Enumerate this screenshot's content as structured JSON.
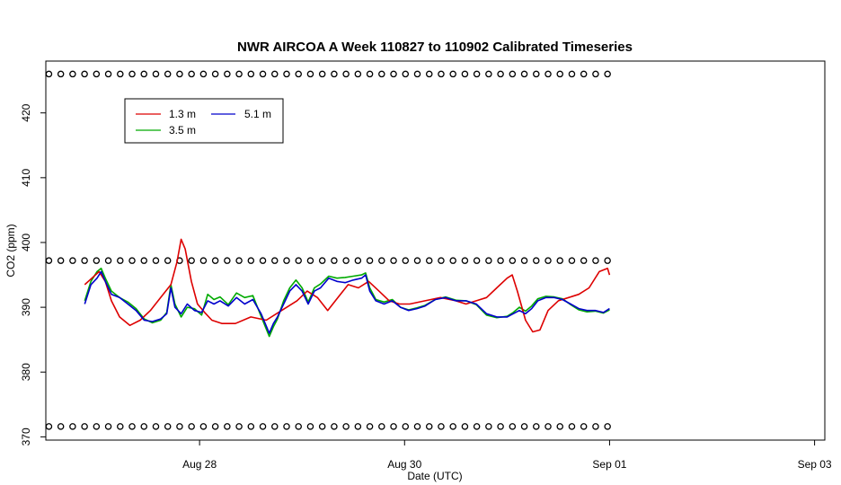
{
  "chart_data": {
    "type": "line",
    "title": "NWR AIRCOA A  Week 110827 to 110902  Calibrated Timeseries",
    "xlabel": "Date (UTC)",
    "ylabel": "CO2 (ppm)",
    "x_units": "days since Aug 27 00:00 UTC",
    "xlim": [
      -0.5,
      7.1
    ],
    "ylim": [
      369.5,
      428
    ],
    "x_ticks": [
      {
        "value": 1,
        "label": "Aug 28"
      },
      {
        "value": 3,
        "label": "Aug 30"
      },
      {
        "value": 5,
        "label": "Sep 01"
      },
      {
        "value": 7,
        "label": "Sep 03"
      }
    ],
    "y_ticks": [
      370,
      380,
      390,
      400,
      410,
      420
    ],
    "legend": {
      "position": "top-left",
      "entries": [
        {
          "label": "1.3 m",
          "color": "#dd0000"
        },
        {
          "label": "5.1 m",
          "color": "#0000cc"
        },
        {
          "label": "3.5 m",
          "color": "#00aa00"
        }
      ]
    },
    "series": [
      {
        "name": "1.3 m",
        "color": "#dd0000",
        "x": [
          -0.12,
          -0.05,
          0.02,
          0.08,
          0.14,
          0.22,
          0.32,
          0.42,
          0.52,
          0.62,
          0.72,
          0.78,
          0.82,
          0.86,
          0.92,
          0.98,
          1.05,
          1.12,
          1.22,
          1.35,
          1.5,
          1.65,
          1.8,
          1.95,
          2.05,
          2.15,
          2.25,
          2.35,
          2.45,
          2.55,
          2.65,
          2.75,
          2.85,
          2.95,
          3.05,
          3.2,
          3.35,
          3.5,
          3.6,
          3.7,
          3.8,
          3.9,
          4.0,
          4.05,
          4.1,
          4.18,
          4.25,
          4.32,
          4.4,
          4.5,
          4.6,
          4.7,
          4.8,
          4.9,
          4.98,
          5.0
        ],
        "y": [
          393.5,
          394.5,
          395.5,
          394,
          391,
          388.5,
          387.2,
          388,
          389.5,
          391.5,
          393.5,
          397,
          400.5,
          399,
          394,
          390.5,
          389.2,
          388,
          387.5,
          387.5,
          388.5,
          388,
          389.5,
          391,
          392.5,
          391.5,
          389.5,
          391.5,
          393.5,
          393,
          394,
          392.5,
          391,
          390.5,
          390.5,
          391,
          391.5,
          391,
          390.5,
          391,
          391.5,
          393,
          394.5,
          395,
          392.5,
          388,
          386.2,
          386.5,
          389.5,
          391,
          391.5,
          392,
          393,
          395.5,
          396,
          395
        ]
      },
      {
        "name": "5.1 m",
        "color": "#0000cc",
        "x": [
          -0.12,
          -0.06,
          0.0,
          0.04,
          0.08,
          0.14,
          0.22,
          0.3,
          0.38,
          0.46,
          0.54,
          0.62,
          0.68,
          0.72,
          0.76,
          0.82,
          0.88,
          0.95,
          1.02,
          1.08,
          1.14,
          1.2,
          1.28,
          1.36,
          1.44,
          1.52,
          1.6,
          1.68,
          1.72,
          1.76,
          1.82,
          1.88,
          1.94,
          2.0,
          2.06,
          2.12,
          2.18,
          2.26,
          2.34,
          2.42,
          2.5,
          2.58,
          2.62,
          2.66,
          2.72,
          2.8,
          2.88,
          2.96,
          3.04,
          3.12,
          3.2,
          3.3,
          3.4,
          3.5,
          3.6,
          3.7,
          3.8,
          3.9,
          4.0,
          4.06,
          4.12,
          4.18,
          4.24,
          4.3,
          4.38,
          4.46,
          4.54,
          4.62,
          4.7,
          4.78,
          4.86,
          4.94,
          5.0
        ],
        "y": [
          390.5,
          393.5,
          394.5,
          395.5,
          394,
          392,
          391.5,
          390.5,
          389.5,
          388,
          387.8,
          388.2,
          389,
          393,
          390,
          389,
          390.5,
          389.5,
          389.2,
          391,
          390.5,
          391,
          390.2,
          391.5,
          390.5,
          391.2,
          389,
          386,
          387.5,
          388.5,
          390.5,
          392.5,
          393.5,
          392.5,
          390.5,
          392.5,
          393,
          394.5,
          394,
          393.8,
          394.2,
          394.5,
          395,
          392.5,
          391,
          390.5,
          391,
          390,
          389.5,
          389.8,
          390.2,
          391.2,
          391.5,
          391,
          391,
          390.5,
          389,
          388.5,
          388.5,
          389,
          389.5,
          389,
          389.8,
          391,
          391.5,
          391.5,
          391.2,
          390.5,
          389.8,
          389.5,
          389.5,
          389.2,
          389.8
        ]
      },
      {
        "name": "3.5 m",
        "color": "#00aa00",
        "x": [
          -0.12,
          -0.06,
          0.0,
          0.04,
          0.08,
          0.14,
          0.22,
          0.3,
          0.38,
          0.46,
          0.54,
          0.62,
          0.68,
          0.72,
          0.76,
          0.82,
          0.88,
          0.95,
          1.02,
          1.08,
          1.14,
          1.2,
          1.28,
          1.36,
          1.44,
          1.52,
          1.6,
          1.68,
          1.72,
          1.76,
          1.82,
          1.88,
          1.94,
          2.0,
          2.06,
          2.12,
          2.18,
          2.26,
          2.34,
          2.42,
          2.5,
          2.58,
          2.62,
          2.66,
          2.72,
          2.8,
          2.88,
          2.96,
          3.04,
          3.12,
          3.2,
          3.3,
          3.4,
          3.5,
          3.6,
          3.7,
          3.8,
          3.9,
          4.0,
          4.06,
          4.12,
          4.18,
          4.24,
          4.3,
          4.38,
          4.46,
          4.54,
          4.62,
          4.7,
          4.78,
          4.86,
          4.94,
          5.0
        ],
        "y": [
          391,
          394,
          395.5,
          396,
          394.5,
          392.5,
          391.5,
          390.8,
          389.8,
          388.2,
          387.6,
          388,
          389.2,
          393.5,
          390.5,
          388.5,
          390,
          389.8,
          388.8,
          392,
          391.2,
          391.6,
          390.4,
          392.2,
          391.5,
          391.8,
          388.6,
          385.5,
          387,
          388.2,
          391,
          393,
          394.2,
          393,
          390.8,
          393,
          393.6,
          394.8,
          394.5,
          394.6,
          394.8,
          395,
          395.3,
          393,
          391.2,
          390.8,
          391.2,
          390,
          389.6,
          389.9,
          390.3,
          391.2,
          391.6,
          391.1,
          391,
          390.4,
          388.8,
          388.4,
          388.6,
          389.2,
          390,
          389.4,
          390.2,
          391.3,
          391.7,
          391.6,
          391.3,
          390.4,
          389.6,
          389.3,
          389.4,
          389.1,
          389.6
        ]
      }
    ],
    "reference_markers": {
      "marker": "circle",
      "x_start": -0.47,
      "x_end": 4.98,
      "count": 48,
      "levels": [
        426,
        397.2,
        371.6
      ]
    }
  }
}
